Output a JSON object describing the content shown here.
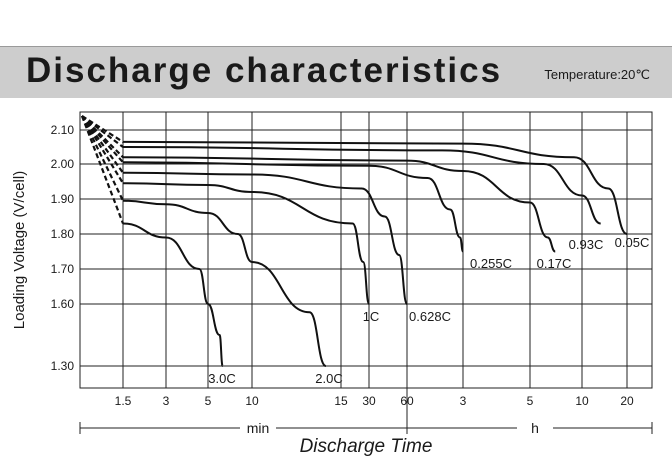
{
  "header": {
    "title": "Discharge characteristics",
    "temperature": "Temperature:20℃"
  },
  "chart_data": {
    "type": "line",
    "title": "Discharge characteristics",
    "subtitle": "Temperature:20℃",
    "xlabel": "Discharge Time",
    "ylabel": "Loading Voltage (V/cell)",
    "x_scale": "log",
    "x_unit_groups": [
      {
        "label": "min",
        "ticks": [
          "1.5",
          "3",
          "5",
          "10",
          "15",
          "30",
          "60"
        ]
      },
      {
        "label": "h",
        "ticks": [
          "3",
          "5",
          "10",
          "20"
        ]
      }
    ],
    "x_ticks_minutes": [
      1.5,
      3,
      5,
      10,
      15,
      30,
      60,
      180,
      300,
      600,
      1200
    ],
    "x_tick_labels": [
      "1.5",
      "3",
      "5",
      "10",
      "15",
      "30",
      "60",
      "3",
      "5",
      "10",
      "20"
    ],
    "y_ticks": [
      2.1,
      2.0,
      1.9,
      1.8,
      1.7,
      1.6,
      1.3
    ],
    "y_tick_labels": [
      "2.10",
      "2.00",
      "1.90",
      "1.80",
      "1.70",
      "1.60",
      "1.30"
    ],
    "grid": true,
    "series": [
      {
        "name": "3.0C",
        "points": [
          [
            1.5,
            1.83
          ],
          [
            3,
            1.79
          ],
          [
            4.5,
            1.7
          ],
          [
            5,
            1.6
          ],
          [
            6,
            1.45
          ],
          [
            6.3,
            1.3
          ]
        ]
      },
      {
        "name": "2.0C",
        "points": [
          [
            1.5,
            1.895
          ],
          [
            3,
            1.885
          ],
          [
            5,
            1.86
          ],
          [
            8,
            1.8
          ],
          [
            10,
            1.72
          ],
          [
            13,
            1.56
          ],
          [
            14,
            1.3
          ]
        ]
      },
      {
        "name": "1C",
        "points": [
          [
            1.5,
            1.945
          ],
          [
            5,
            1.94
          ],
          [
            10,
            1.92
          ],
          [
            20,
            1.83
          ],
          [
            26,
            1.72
          ],
          [
            30,
            1.6
          ]
        ]
      },
      {
        "name": "0.628C",
        "points": [
          [
            1.5,
            1.975
          ],
          [
            10,
            1.97
          ],
          [
            25,
            1.93
          ],
          [
            40,
            1.85
          ],
          [
            52,
            1.74
          ],
          [
            60,
            1.6
          ]
        ]
      },
      {
        "name": "0.255C",
        "points": [
          [
            1.5,
            2.005
          ],
          [
            30,
            1.995
          ],
          [
            90,
            1.96
          ],
          [
            140,
            1.87
          ],
          [
            170,
            1.79
          ],
          [
            180,
            1.75
          ]
        ]
      },
      {
        "name": "0.17C",
        "points": [
          [
            1.5,
            2.02
          ],
          [
            60,
            2.01
          ],
          [
            180,
            1.98
          ],
          [
            300,
            1.89
          ],
          [
            380,
            1.79
          ],
          [
            420,
            1.75
          ]
        ]
      },
      {
        "name": "0.93C",
        "points": [
          [
            1.5,
            2.05
          ],
          [
            120,
            2.04
          ],
          [
            360,
            2.0
          ],
          [
            600,
            1.91
          ],
          [
            800,
            1.83
          ]
        ]
      },
      {
        "name": "0.05C",
        "points": [
          [
            1.5,
            2.065
          ],
          [
            180,
            2.06
          ],
          [
            540,
            2.02
          ],
          [
            900,
            1.93
          ],
          [
            1200,
            1.8
          ]
        ]
      }
    ],
    "initial_dip": {
      "x": 1.0,
      "y": 2.12
    }
  }
}
